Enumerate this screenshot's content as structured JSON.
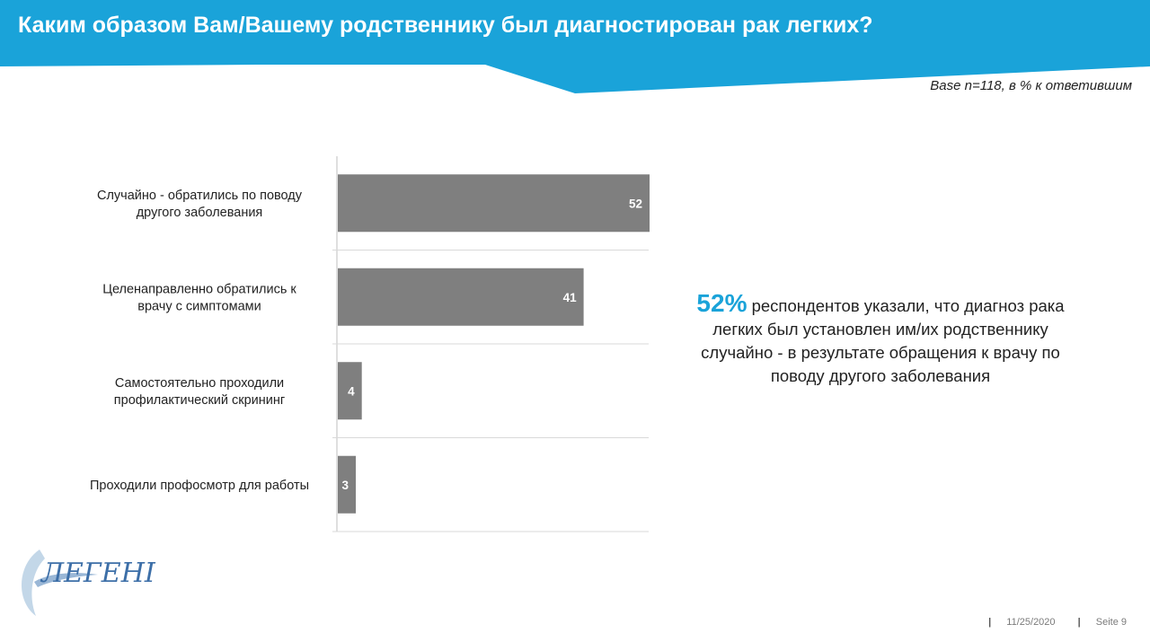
{
  "header": {
    "title": "Каким образом Вам/Вашему родственнику был диагностирован рак легких?"
  },
  "base_note": "Base n=118,  в % к ответившим",
  "chart_data": {
    "type": "bar",
    "orientation": "horizontal",
    "categories": [
      [
        "Случайно - обратились по поводу",
        "другого заболевания"
      ],
      [
        "Целенаправленно обратились к",
        "врачу с симптомами"
      ],
      [
        "Самостоятельно проходили",
        "профилактический скрининг"
      ],
      [
        "Проходили профосмотр для работы"
      ]
    ],
    "values": [
      52,
      41,
      4,
      3
    ],
    "value_labels": [
      "52",
      "41",
      "4",
      "3"
    ],
    "xlim": [
      0,
      52
    ],
    "bar_color": "#7f7f7f",
    "grid": false,
    "legend": "none"
  },
  "callout": {
    "percent": "52%",
    "text": "респондентов указали, что диагноз рака легких был установлен им/их родственнику случайно - в результате обращения к врачу по поводу другого заболевания"
  },
  "logo": {
    "text": "ЛЕГЕНІ"
  },
  "footer": {
    "date": "11/25/2020",
    "page": "Seite 9"
  },
  "colors": {
    "accent": "#1aa3d9",
    "bar": "#7f7f7f"
  }
}
